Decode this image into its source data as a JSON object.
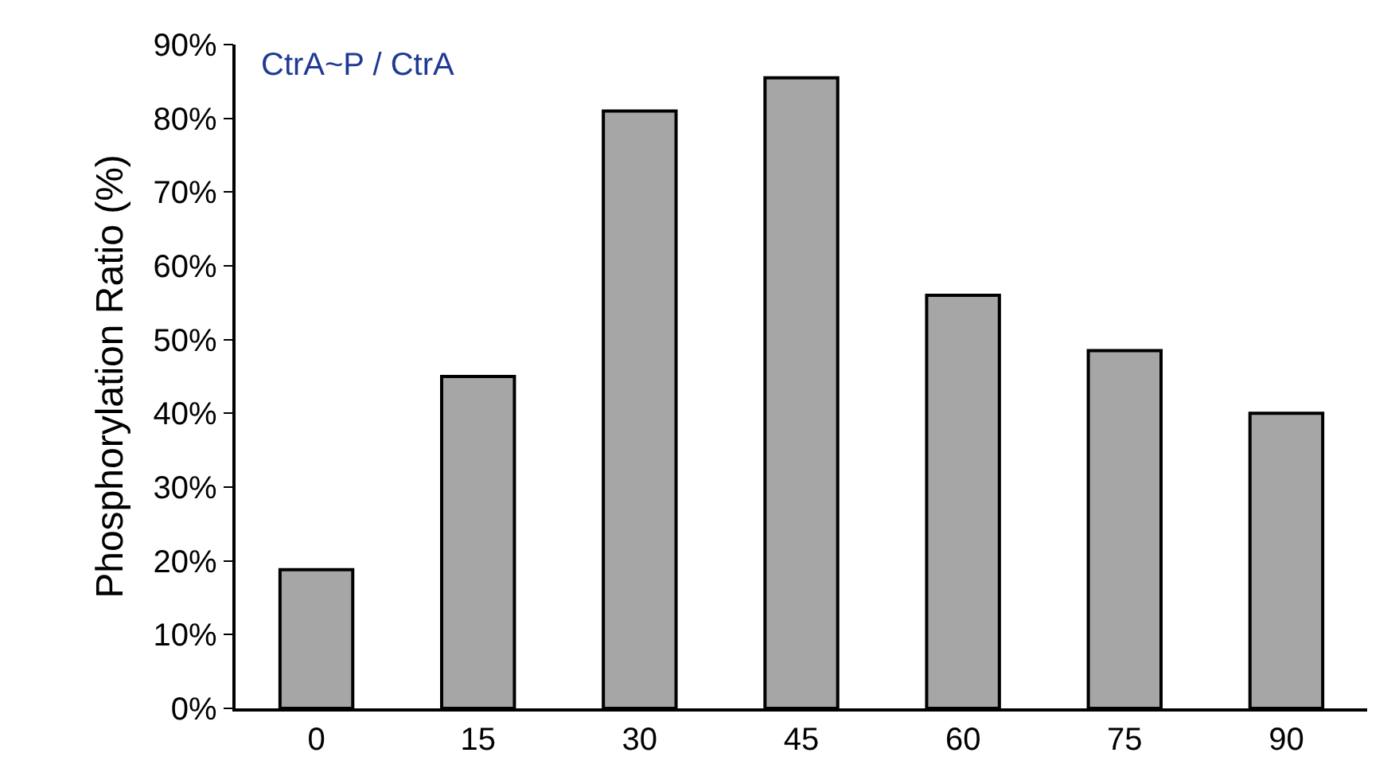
{
  "chart_data": {
    "type": "bar",
    "ylabel": "Phosphorylation Ratio (%)",
    "annotations": [
      "CtrA~P / CtrA"
    ],
    "categories": [
      "0",
      "15",
      "30",
      "45",
      "60",
      "75",
      "90"
    ],
    "values": [
      18.8,
      45,
      81,
      85.5,
      56,
      48.5,
      40
    ],
    "color": "#a6a6a6",
    "ylim": [
      0,
      90
    ],
    "yticks": [
      {
        "value": 0,
        "label": "0%"
      },
      {
        "value": 10,
        "label": "10%"
      },
      {
        "value": 20,
        "label": "20%"
      },
      {
        "value": 30,
        "label": "30%"
      },
      {
        "value": 40,
        "label": "40%"
      },
      {
        "value": 50,
        "label": "50%"
      },
      {
        "value": 60,
        "label": "60%"
      },
      {
        "value": 70,
        "label": "70%"
      },
      {
        "value": 80,
        "label": "80%"
      },
      {
        "value": 90,
        "label": "90%"
      }
    ],
    "grid": false,
    "legend": false
  }
}
